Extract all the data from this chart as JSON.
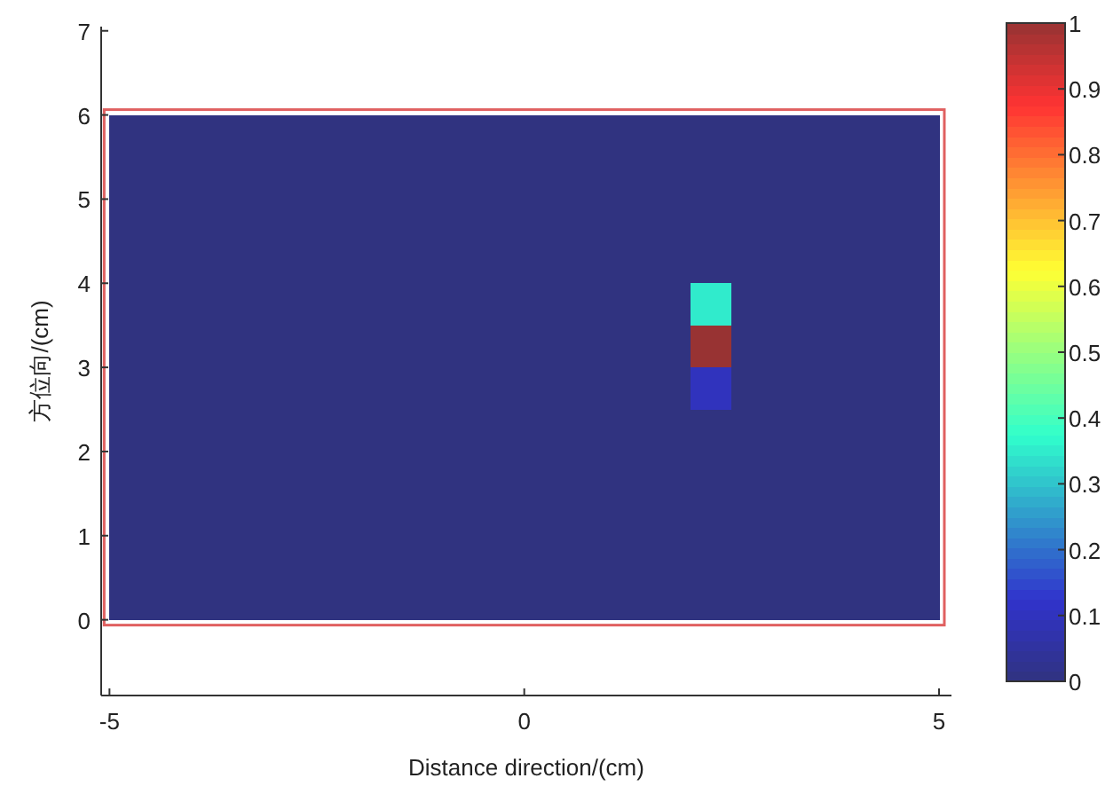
{
  "chart_data": {
    "type": "heatmap",
    "xlabel": "Distance direction/(cm)",
    "ylabel": "方位向/(cm)",
    "x": [
      -4.75,
      -4.25,
      -3.75,
      -3.25,
      -2.75,
      -2.25,
      -1.75,
      -1.25,
      -0.75,
      -0.25,
      0.25,
      0.75,
      1.25,
      1.75,
      2.25,
      2.75,
      3.25,
      3.75,
      4.25,
      4.75
    ],
    "y": [
      5.75,
      5.25,
      4.75,
      4.25,
      3.75,
      3.25,
      2.75,
      2.25,
      1.75,
      1.25,
      0.75,
      0.25
    ],
    "cells": [
      [
        0,
        0,
        0,
        0,
        0,
        0,
        0,
        0,
        0,
        0,
        0,
        0,
        0,
        0,
        0,
        0,
        0,
        0,
        0,
        0
      ],
      [
        0,
        0,
        0,
        0,
        0,
        0,
        0,
        0,
        0,
        0,
        0,
        0,
        0,
        0,
        0,
        0,
        0,
        0,
        0,
        0
      ],
      [
        0,
        0,
        0,
        0,
        0,
        0,
        0,
        0,
        0,
        0,
        0,
        0,
        0,
        0,
        0,
        0,
        0,
        0,
        0,
        0
      ],
      [
        0,
        0,
        0,
        0,
        0,
        0,
        0,
        0,
        0,
        0,
        0,
        0,
        0,
        0,
        0,
        0,
        0,
        0,
        0,
        0
      ],
      [
        0,
        0,
        0,
        0,
        0,
        0,
        0,
        0,
        0,
        0,
        0,
        0,
        0,
        0,
        0.35,
        0,
        0,
        0,
        0,
        0
      ],
      [
        0,
        0,
        0,
        0,
        0,
        0,
        0,
        0,
        0,
        0,
        0,
        0,
        0,
        0,
        1,
        0,
        0,
        0,
        0,
        0
      ],
      [
        0,
        0,
        0,
        0,
        0,
        0,
        0,
        0,
        0,
        0,
        0,
        0,
        0,
        0,
        0.1,
        0,
        0,
        0,
        0,
        0
      ],
      [
        0,
        0,
        0,
        0,
        0,
        0,
        0,
        0,
        0,
        0,
        0,
        0,
        0,
        0,
        0,
        0,
        0,
        0,
        0,
        0
      ],
      [
        0,
        0,
        0,
        0,
        0,
        0,
        0,
        0,
        0,
        0,
        0,
        0,
        0,
        0,
        0,
        0,
        0,
        0,
        0,
        0
      ],
      [
        0,
        0,
        0,
        0,
        0,
        0,
        0,
        0,
        0,
        0,
        0,
        0,
        0,
        0,
        0,
        0,
        0,
        0,
        0,
        0
      ],
      [
        0,
        0,
        0,
        0,
        0,
        0,
        0,
        0,
        0,
        0,
        0,
        0,
        0,
        0,
        0,
        0,
        0,
        0,
        0,
        0
      ],
      [
        0,
        0,
        0,
        0,
        0,
        0,
        0,
        0,
        0,
        0,
        0,
        0,
        0,
        0,
        0,
        0,
        0,
        0,
        0,
        0
      ]
    ],
    "xlim": [
      -5.1,
      5.15
    ],
    "xticks": [
      -5,
      0,
      5
    ],
    "ylim": [
      -0.9,
      7.05
    ],
    "yticks": [
      0,
      1,
      2,
      3,
      4,
      5,
      6,
      7
    ],
    "clim": [
      0,
      1
    ],
    "cticks": [
      0,
      0.1,
      0.2,
      0.3,
      0.4,
      0.5,
      0.6,
      0.7,
      0.8,
      0.9,
      1
    ]
  }
}
